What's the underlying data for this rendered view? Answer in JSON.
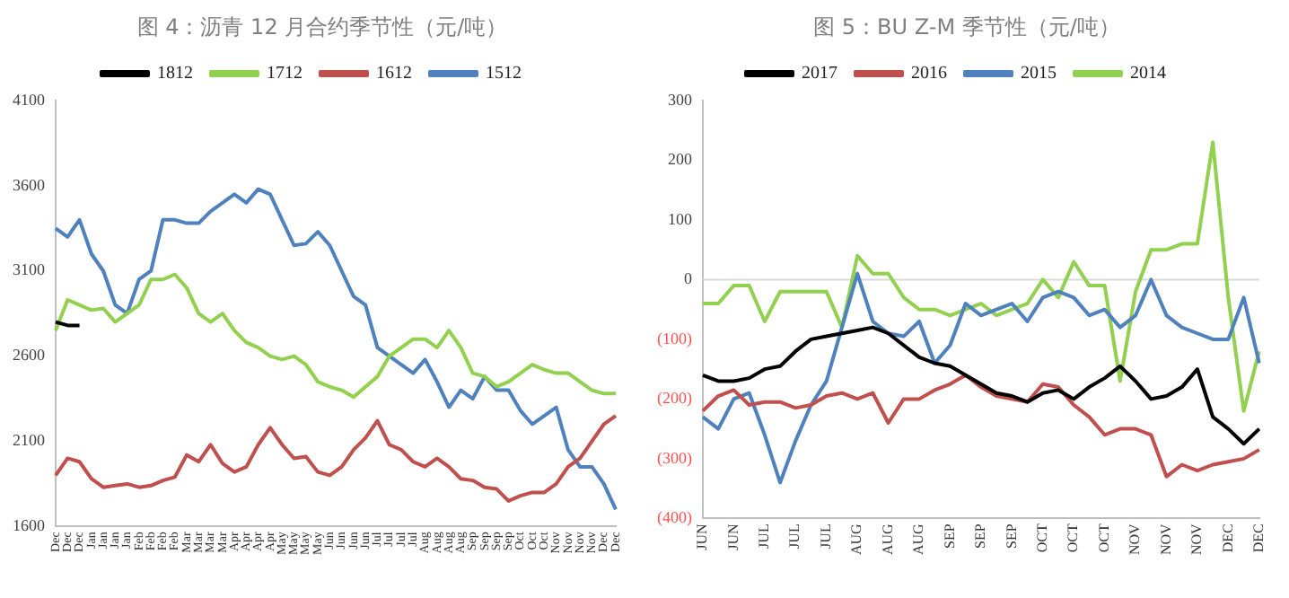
{
  "chart_data": [
    {
      "type": "line",
      "title": "图 4：沥青 12 月合约季节性（元/吨）",
      "legend": "top",
      "ylim": [
        1600,
        4100
      ],
      "yticks": [
        1600,
        2100,
        2600,
        3100,
        3600,
        4100
      ],
      "categories": [
        "Dec",
        "Dec",
        "Dec",
        "Jan",
        "Jan",
        "Jan",
        "Jan",
        "Feb",
        "Feb",
        "Feb",
        "Feb",
        "Mar",
        "Mar",
        "Mar",
        "Mar",
        "Apr",
        "Apr",
        "Apr",
        "Apr",
        "May",
        "May",
        "May",
        "May",
        "Jun",
        "Jun",
        "Jun",
        "Jun",
        "Jul",
        "Jul",
        "Jul",
        "Jul",
        "Aug",
        "Aug",
        "Aug",
        "Aug",
        "Sep",
        "Sep",
        "Sep",
        "Sep",
        "Oct",
        "Oct",
        "Oct",
        "Nov",
        "Nov",
        "Nov",
        "Nov",
        "Dec",
        "Dec"
      ],
      "series": [
        {
          "name": "1812",
          "color": "#000000",
          "values": [
            2800,
            2780,
            2780,
            null,
            null,
            null,
            null,
            null,
            null,
            null,
            null,
            null,
            null,
            null,
            null,
            null,
            null,
            null,
            null,
            null,
            null,
            null,
            null,
            null,
            null,
            null,
            null,
            null,
            null,
            null,
            null,
            null,
            null,
            null,
            null,
            null,
            null,
            null,
            null,
            null,
            null,
            null,
            null,
            null,
            null,
            null,
            null,
            null
          ]
        },
        {
          "name": "1712",
          "color": "#92d050",
          "values": [
            2750,
            2930,
            2900,
            2870,
            2880,
            2800,
            2850,
            2900,
            3050,
            3050,
            3080,
            3000,
            2850,
            2800,
            2850,
            2750,
            2680,
            2650,
            2600,
            2580,
            2600,
            2550,
            2450,
            2420,
            2400,
            2360,
            2420,
            2480,
            2600,
            2650,
            2700,
            2700,
            2650,
            2750,
            2650,
            2500,
            2480,
            2420,
            2450,
            2500,
            2550,
            2520,
            2500,
            2500,
            2450,
            2400,
            2380,
            2380
          ]
        },
        {
          "name": "1612",
          "color": "#c0504d",
          "values": [
            1900,
            2000,
            1980,
            1880,
            1830,
            1840,
            1850,
            1830,
            1840,
            1870,
            1890,
            2020,
            1980,
            2080,
            1970,
            1920,
            1950,
            2080,
            2180,
            2080,
            2000,
            2010,
            1920,
            1900,
            1950,
            2050,
            2120,
            2220,
            2080,
            2050,
            1980,
            1950,
            2000,
            1950,
            1880,
            1870,
            1830,
            1820,
            1750,
            1780,
            1800,
            1800,
            1850,
            1950,
            2000,
            2100,
            2200,
            2250
          ]
        },
        {
          "name": "1512",
          "color": "#4f81bd",
          "values": [
            3350,
            3300,
            3400,
            3200,
            3100,
            2900,
            2850,
            3050,
            3100,
            3400,
            3400,
            3380,
            3380,
            3450,
            3500,
            3550,
            3500,
            3580,
            3550,
            3400,
            3250,
            3260,
            3330,
            3250,
            3100,
            2950,
            2900,
            2650,
            2600,
            2550,
            2500,
            2580,
            2450,
            2300,
            2400,
            2350,
            2480,
            2400,
            2400,
            2280,
            2200,
            2250,
            2300,
            2050,
            1950,
            1950,
            1850,
            1700
          ]
        }
      ]
    },
    {
      "type": "line",
      "title": "图 5：BU Z-M 季节性（元/吨）",
      "legend": "top",
      "ylim": [
        -400,
        300
      ],
      "yticks": [
        {
          "value": -400,
          "label": "(400)"
        },
        {
          "value": -300,
          "label": "(300)"
        },
        {
          "value": -200,
          "label": "(200)"
        },
        {
          "value": -100,
          "label": "(100)"
        },
        0,
        100,
        200,
        300
      ],
      "ref_lines": [
        {
          "axis": "y",
          "value": 0,
          "color": "#d9d9d9"
        }
      ],
      "categories": [
        "JUN",
        null,
        "JUN",
        null,
        "JUL",
        null,
        "JUL",
        null,
        "JUL",
        null,
        "AUG",
        null,
        "AUG",
        null,
        "AUG",
        null,
        "SEP",
        null,
        "SEP",
        null,
        "SEP",
        null,
        "OCT",
        null,
        "OCT",
        null,
        "OCT",
        null,
        "NOV",
        null,
        "NOV",
        null,
        "NOV",
        null,
        "DEC",
        null,
        "DEC"
      ],
      "series": [
        {
          "name": "2017",
          "color": "#000000",
          "values": [
            -160,
            -170,
            -170,
            -165,
            -150,
            -145,
            -120,
            -100,
            -95,
            -90,
            -85,
            -80,
            -90,
            -110,
            -130,
            -140,
            -145,
            -160,
            -175,
            -190,
            -195,
            -205,
            -190,
            -185,
            -200,
            -180,
            -165,
            -145,
            -170,
            -200,
            -195,
            -180,
            -150,
            -230,
            -250,
            -275,
            -250
          ]
        },
        {
          "name": "2016",
          "color": "#c0504d",
          "values": [
            -220,
            -195,
            -185,
            -210,
            -205,
            -205,
            -215,
            -210,
            -195,
            -190,
            -200,
            -190,
            -240,
            -200,
            -200,
            -185,
            -175,
            -160,
            -180,
            -195,
            -200,
            -205,
            -175,
            -180,
            -210,
            -230,
            -260,
            -250,
            -250,
            -260,
            -330,
            -310,
            -320,
            -310,
            -305,
            -300,
            -285
          ]
        },
        {
          "name": "2015",
          "color": "#4f81bd",
          "values": [
            -230,
            -250,
            -200,
            -190,
            -260,
            -340,
            -270,
            -210,
            -170,
            -80,
            10,
            -70,
            -90,
            -95,
            -70,
            -140,
            -110,
            -40,
            -60,
            -50,
            -40,
            -70,
            -30,
            -20,
            -30,
            -60,
            -50,
            -80,
            -60,
            0,
            -60,
            -80,
            -90,
            -100,
            -100,
            -30,
            -140
          ]
        },
        {
          "name": "2014",
          "color": "#92d050",
          "values": [
            -40,
            -40,
            -10,
            -10,
            -70,
            -20,
            -20,
            -20,
            -20,
            -80,
            40,
            10,
            10,
            -30,
            -50,
            -50,
            -60,
            -50,
            -40,
            -60,
            -50,
            -40,
            0,
            -30,
            30,
            -10,
            -10,
            -170,
            -20,
            50,
            50,
            60,
            60,
            230,
            -30,
            -220,
            -120
          ]
        }
      ]
    }
  ]
}
